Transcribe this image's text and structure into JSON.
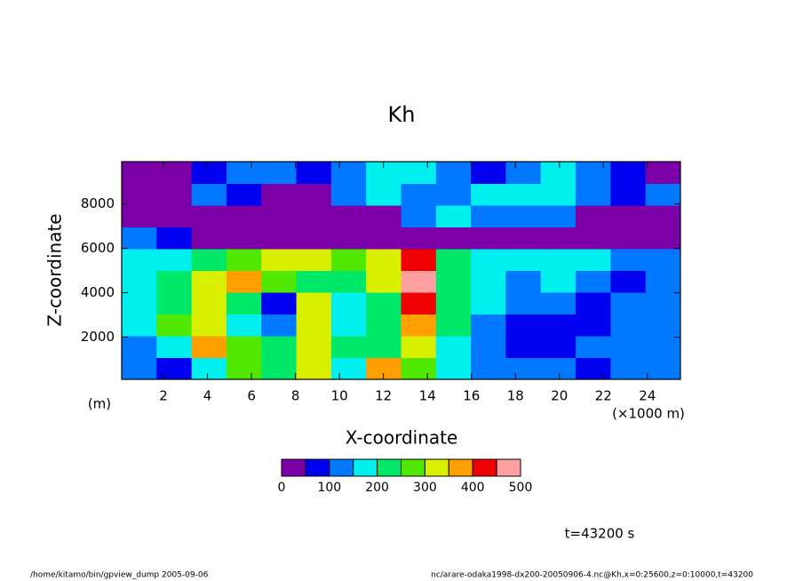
{
  "chart_data": {
    "type": "contour",
    "title": "Kh",
    "xlabel": "X-coordinate",
    "ylabel": "Z-coordinate",
    "xunits": "(×1000 m)",
    "yunits": "(m)",
    "xlim": [
      0.1,
      25.5
    ],
    "ylim": [
      100,
      9900
    ],
    "xticks": [
      2,
      4,
      6,
      8,
      10,
      12,
      14,
      16,
      18,
      20,
      22,
      24
    ],
    "yticks": [
      2000,
      4000,
      6000,
      8000
    ],
    "x": [
      0.8,
      2.4,
      4.0,
      5.6,
      7.2,
      8.8,
      10.4,
      12.0,
      13.6,
      15.2,
      16.8,
      18.4,
      20.0,
      21.6,
      23.2,
      24.8
    ],
    "y": [
      500,
      1500,
      2500,
      3500,
      4500,
      5500,
      6500,
      7500,
      8500,
      9500
    ],
    "z": [
      [
        125,
        75,
        175,
        275,
        225,
        325,
        175,
        375,
        275,
        175,
        125,
        125,
        125,
        75,
        125,
        125
      ],
      [
        125,
        175,
        375,
        275,
        225,
        325,
        225,
        225,
        325,
        175,
        125,
        75,
        75,
        125,
        125,
        125
      ],
      [
        175,
        275,
        325,
        175,
        125,
        325,
        175,
        225,
        375,
        225,
        125,
        75,
        75,
        75,
        125,
        125
      ],
      [
        175,
        225,
        325,
        225,
        75,
        325,
        175,
        225,
        425,
        225,
        175,
        125,
        125,
        75,
        125,
        125
      ],
      [
        175,
        225,
        325,
        375,
        275,
        225,
        225,
        325,
        475,
        225,
        175,
        125,
        175,
        125,
        75,
        125
      ],
      [
        175,
        175,
        225,
        275,
        325,
        325,
        275,
        325,
        425,
        225,
        175,
        175,
        175,
        175,
        125,
        125
      ],
      [
        125,
        75,
        25,
        25,
        25,
        25,
        25,
        25,
        25,
        25,
        25,
        25,
        25,
        25,
        25,
        25
      ],
      [
        25,
        25,
        25,
        25,
        25,
        25,
        25,
        25,
        125,
        175,
        125,
        125,
        125,
        25,
        25,
        25
      ],
      [
        25,
        25,
        125,
        75,
        25,
        25,
        125,
        175,
        125,
        125,
        175,
        175,
        175,
        125,
        75,
        125
      ],
      [
        25,
        25,
        75,
        125,
        125,
        75,
        125,
        175,
        175,
        125,
        75,
        125,
        175,
        125,
        75,
        25
      ]
    ],
    "colorbar": {
      "levels": [
        0,
        50,
        100,
        150,
        200,
        250,
        300,
        350,
        400,
        450,
        500
      ],
      "colors": [
        "#7b00a8",
        "#0000f0",
        "#0078ff",
        "#00f0f0",
        "#00e86a",
        "#50e800",
        "#d8f000",
        "#ffa000",
        "#f00000",
        "#ffa0a0"
      ],
      "ticks": [
        0,
        100,
        200,
        300,
        400,
        500
      ]
    },
    "annotation": "t=43200 s",
    "footer_left": "/home/kitamo/bin/gpview_dump  2005-09-06",
    "footer_right": "nc/arare-odaka1998-dx200-20050906-4.nc@Kh,x=0:25600,z=0:10000,t=43200"
  }
}
